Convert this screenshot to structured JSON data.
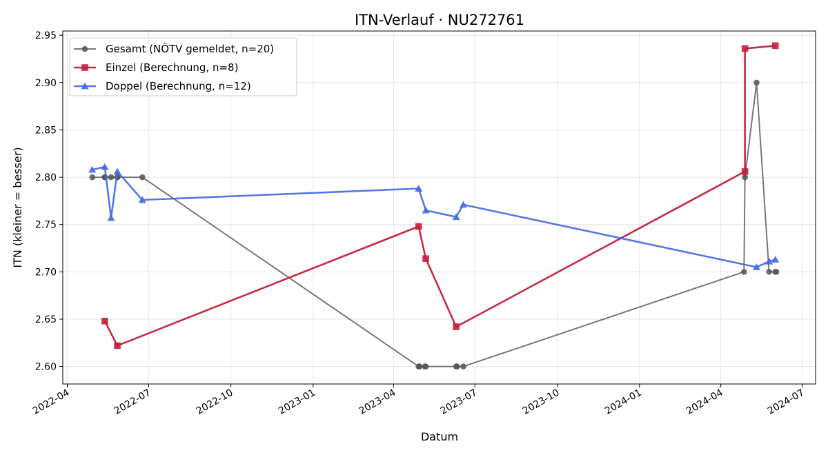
{
  "chart_data": {
    "type": "line",
    "title": "ITN-Verlauf · NU272761",
    "xlabel": "Datum",
    "ylabel": "ITN  (kleiner = besser)",
    "xlim": [
      "2022-03-27",
      "2024-07-16"
    ],
    "ylim": [
      2.5815,
      2.9545
    ],
    "grid": true,
    "legend_position": "top-left",
    "x_ticks": [
      "2022-04",
      "2022-07",
      "2022-10",
      "2023-01",
      "2023-04",
      "2023-07",
      "2023-10",
      "2024-01",
      "2024-04",
      "2024-07"
    ],
    "x_tick_dates": [
      "2022-04-01",
      "2022-07-01",
      "2022-10-01",
      "2023-01-01",
      "2023-04-01",
      "2023-07-01",
      "2023-10-01",
      "2024-01-01",
      "2024-04-01",
      "2024-07-01"
    ],
    "y_ticks": [
      "2.60",
      "2.65",
      "2.70",
      "2.75",
      "2.80",
      "2.85",
      "2.90",
      "2.95"
    ],
    "y_tick_values": [
      2.6,
      2.65,
      2.7,
      2.75,
      2.8,
      2.85,
      2.9,
      2.95
    ],
    "series": [
      {
        "name": "Gesamt (NÖTV gemeldet, n=20)",
        "color": "#555555",
        "marker": "circle",
        "x": [
          "2022-04-29",
          "2022-05-13",
          "2022-05-13",
          "2022-05-20",
          "2022-05-27",
          "2022-05-27",
          "2022-06-24",
          "2023-04-29",
          "2023-04-30",
          "2023-05-06",
          "2023-05-07",
          "2023-06-10",
          "2023-06-11",
          "2023-06-18",
          "2024-04-27",
          "2024-04-28",
          "2024-05-11",
          "2024-05-25",
          "2024-06-01",
          "2024-06-02"
        ],
        "values": [
          2.8,
          2.8,
          2.8,
          2.8,
          2.8,
          2.8,
          2.8,
          2.6,
          2.6,
          2.6,
          2.6,
          2.6,
          2.6,
          2.6,
          2.7,
          2.8,
          2.9,
          2.7,
          2.7,
          2.7
        ]
      },
      {
        "name": "Einzel (Berechnung, n=8)",
        "color": "#c41e3a",
        "marker": "square",
        "x": [
          "2022-05-13",
          "2022-05-27",
          "2023-04-29",
          "2023-05-07",
          "2023-06-10",
          "2024-04-28",
          "2024-04-28",
          "2024-06-01"
        ],
        "values": [
          2.648,
          2.622,
          2.748,
          2.714,
          2.642,
          2.806,
          2.936,
          2.939
        ]
      },
      {
        "name": "Doppel (Berechnung, n=12)",
        "color": "#4169e1",
        "marker": "triangle",
        "x": [
          "2022-04-29",
          "2022-05-13",
          "2022-05-20",
          "2022-05-27",
          "2022-06-24",
          "2023-04-29",
          "2023-05-07",
          "2023-06-10",
          "2023-06-18",
          "2024-05-11",
          "2024-05-25",
          "2024-06-01"
        ],
        "values": [
          2.808,
          2.811,
          2.757,
          2.806,
          2.776,
          2.788,
          2.765,
          2.758,
          2.771,
          2.705,
          2.711,
          2.713
        ]
      }
    ]
  }
}
